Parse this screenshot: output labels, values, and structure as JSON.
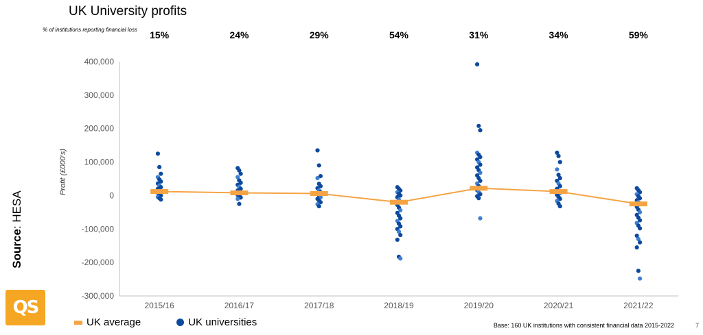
{
  "page": {
    "title": "UK University profits",
    "loss_label": "% of institutions reporting financial loss",
    "source_label": "Source",
    "source_value": ": HESA",
    "logo_text": "QS",
    "legend": {
      "avg": "UK average",
      "uni": "UK universities"
    },
    "base_note": "Base: 160 UK institutions with consistent financial data 2015-2022",
    "page_number": "7"
  },
  "colors": {
    "dots": "#0d4a9e",
    "dots_light": "#3f7fcf",
    "average": "#f5a445",
    "logo": "#f5a623"
  },
  "chart_data": {
    "type": "scatter",
    "title": "UK University profits",
    "ylabel": "Profit (£000's)",
    "ylim": [
      -300000,
      400000
    ],
    "yticks": [
      400000,
      300000,
      200000,
      100000,
      0,
      -100000,
      -200000,
      -300000
    ],
    "ytick_labels": [
      "400,000",
      "300,000",
      "200,000",
      "100,000",
      "0",
      "-100,000",
      "-200,000",
      "-300,000"
    ],
    "categories": [
      "2015/16",
      "2016/17",
      "2017/18",
      "2018/19",
      "2019/20",
      "2020/21",
      "2021/22"
    ],
    "loss_pct": [
      "15%",
      "24%",
      "29%",
      "54%",
      "31%",
      "34%",
      "59%"
    ],
    "series": [
      {
        "name": "UK average",
        "type": "line",
        "values": [
          12000,
          8000,
          6000,
          -20000,
          22000,
          12000,
          -25000
        ]
      },
      {
        "name": "UK universities",
        "type": "scatter",
        "points": [
          [
            125000,
            85000,
            65000,
            55000,
            48000,
            42000,
            36000,
            30000,
            25000,
            20000,
            16000,
            12000,
            8000,
            4000,
            0,
            -4000,
            -8000,
            -12000
          ],
          [
            82000,
            75000,
            65000,
            55000,
            45000,
            38000,
            32000,
            26000,
            20000,
            15000,
            10000,
            6000,
            2000,
            -2000,
            -6000,
            -10000,
            -25000
          ],
          [
            135000,
            90000,
            58000,
            52000,
            35000,
            28000,
            22000,
            15000,
            10000,
            5000,
            0,
            -5000,
            -10000,
            -15000,
            -20000,
            -26000,
            -32000
          ],
          [
            25000,
            20000,
            15000,
            10000,
            5000,
            0,
            -5000,
            -12000,
            -20000,
            -28000,
            -36000,
            -44000,
            -52000,
            -60000,
            -68000,
            -76000,
            -84000,
            -92000,
            -100000,
            -108000,
            -118000,
            -132000,
            -183000,
            -188000
          ],
          [
            392000,
            208000,
            195000,
            128000,
            122000,
            115000,
            108000,
            100000,
            92000,
            84000,
            76000,
            68000,
            60000,
            52000,
            44000,
            36000,
            28000,
            22000,
            16000,
            10000,
            4000,
            -2000,
            -8000,
            -68000
          ],
          [
            128000,
            118000,
            100000,
            78000,
            62000,
            52000,
            44000,
            36000,
            28000,
            20000,
            14000,
            8000,
            2000,
            -4000,
            -10000,
            -16000,
            -24000,
            -32000
          ],
          [
            22000,
            16000,
            10000,
            4000,
            -2000,
            -8000,
            -14000,
            -20000,
            -26000,
            -34000,
            -42000,
            -50000,
            -58000,
            -66000,
            -74000,
            -82000,
            -90000,
            -98000,
            -120000,
            -130000,
            -140000,
            -155000,
            -225000,
            -248000
          ]
        ]
      }
    ]
  }
}
